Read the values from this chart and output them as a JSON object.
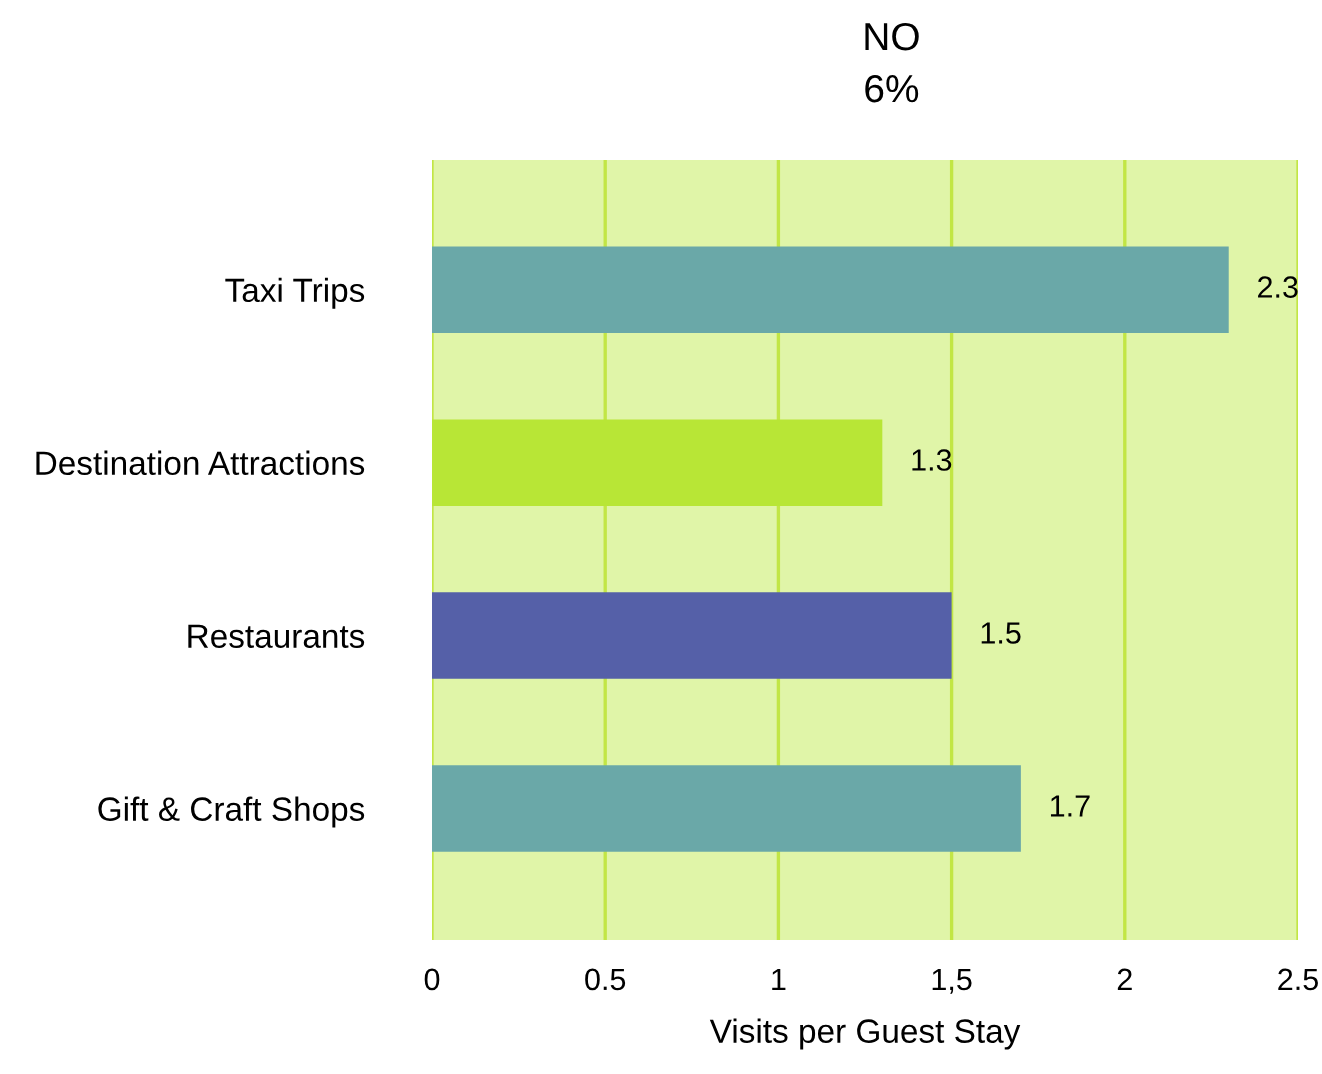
{
  "chart_data": {
    "type": "bar",
    "orientation": "horizontal",
    "title": "NO",
    "subtitle": "6%",
    "xlabel": "Visits per Guest Stay",
    "categories": [
      "Taxi Trips",
      "Destination Attractions",
      "Restaurants",
      "Gift & Craft Shops"
    ],
    "values": [
      2.3,
      1.3,
      1.5,
      1.7
    ],
    "colors": [
      "#6aa8a8",
      "#b8e636",
      "#5560a8",
      "#6aa8a8"
    ],
    "xlim": [
      0,
      2.5
    ],
    "xticks": [
      0,
      0.5,
      1,
      {
        "value": 1.5,
        "label": "1,5"
      },
      2,
      2.5
    ],
    "grid": "x",
    "data_labels": true
  }
}
